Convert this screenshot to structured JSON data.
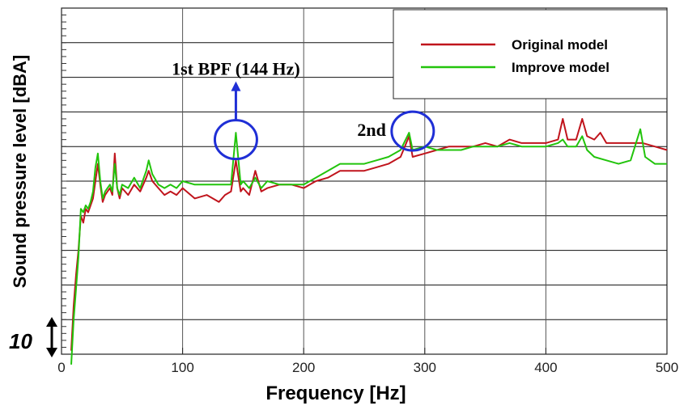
{
  "chart_data": {
    "type": "line",
    "title": "",
    "xlabel": "Frequency [Hz]",
    "ylabel": "Sound pressure level [dBA]",
    "xlim": [
      0,
      500
    ],
    "ylim": [
      0,
      100
    ],
    "x_ticks": [
      "0",
      "100",
      "200",
      "300",
      "400",
      "500"
    ],
    "scale_bar_label": "10",
    "grid": true,
    "legend_position": "top-right",
    "series": [
      {
        "name": "Original model",
        "color": "#c0141c",
        "points": [
          [
            8,
            1
          ],
          [
            10,
            14
          ],
          [
            12,
            23
          ],
          [
            14,
            30
          ],
          [
            16,
            40
          ],
          [
            18,
            38
          ],
          [
            20,
            42
          ],
          [
            22,
            41
          ],
          [
            24,
            43
          ],
          [
            26,
            45
          ],
          [
            28,
            50
          ],
          [
            30,
            55
          ],
          [
            32,
            49
          ],
          [
            34,
            44
          ],
          [
            36,
            46
          ],
          [
            38,
            47
          ],
          [
            40,
            48
          ],
          [
            42,
            46
          ],
          [
            44,
            58
          ],
          [
            46,
            48
          ],
          [
            48,
            45
          ],
          [
            50,
            48
          ],
          [
            55,
            46
          ],
          [
            60,
            49
          ],
          [
            65,
            47
          ],
          [
            70,
            51
          ],
          [
            72,
            53
          ],
          [
            75,
            50
          ],
          [
            80,
            48
          ],
          [
            85,
            46
          ],
          [
            90,
            47
          ],
          [
            95,
            46
          ],
          [
            100,
            48
          ],
          [
            110,
            45
          ],
          [
            120,
            46
          ],
          [
            130,
            44
          ],
          [
            135,
            46
          ],
          [
            140,
            47
          ],
          [
            144,
            56
          ],
          [
            148,
            47
          ],
          [
            150,
            48
          ],
          [
            155,
            46
          ],
          [
            160,
            53
          ],
          [
            165,
            47
          ],
          [
            170,
            48
          ],
          [
            180,
            49
          ],
          [
            190,
            49
          ],
          [
            200,
            48
          ],
          [
            210,
            50
          ],
          [
            220,
            51
          ],
          [
            230,
            53
          ],
          [
            240,
            53
          ],
          [
            250,
            53
          ],
          [
            260,
            54
          ],
          [
            270,
            55
          ],
          [
            280,
            57
          ],
          [
            287,
            63
          ],
          [
            290,
            57
          ],
          [
            300,
            58
          ],
          [
            310,
            59
          ],
          [
            320,
            60
          ],
          [
            330,
            60
          ],
          [
            340,
            60
          ],
          [
            350,
            61
          ],
          [
            360,
            60
          ],
          [
            370,
            62
          ],
          [
            380,
            61
          ],
          [
            390,
            61
          ],
          [
            400,
            61
          ],
          [
            410,
            62
          ],
          [
            414,
            68
          ],
          [
            418,
            62
          ],
          [
            425,
            62
          ],
          [
            430,
            68
          ],
          [
            434,
            63
          ],
          [
            440,
            62
          ],
          [
            445,
            64
          ],
          [
            450,
            61
          ],
          [
            460,
            61
          ],
          [
            470,
            61
          ],
          [
            480,
            61
          ],
          [
            490,
            60
          ],
          [
            500,
            59
          ]
        ]
      },
      {
        "name": "Improve model",
        "color": "#22c40c",
        "points": [
          [
            8,
            -3
          ],
          [
            10,
            10
          ],
          [
            12,
            19
          ],
          [
            14,
            28
          ],
          [
            16,
            42
          ],
          [
            18,
            41
          ],
          [
            20,
            43
          ],
          [
            22,
            42
          ],
          [
            24,
            44
          ],
          [
            26,
            47
          ],
          [
            28,
            54
          ],
          [
            30,
            58
          ],
          [
            32,
            50
          ],
          [
            34,
            45
          ],
          [
            36,
            47
          ],
          [
            38,
            48
          ],
          [
            40,
            49
          ],
          [
            42,
            47
          ],
          [
            44,
            55
          ],
          [
            46,
            48
          ],
          [
            48,
            46
          ],
          [
            50,
            49
          ],
          [
            55,
            48
          ],
          [
            60,
            51
          ],
          [
            65,
            48
          ],
          [
            70,
            53
          ],
          [
            72,
            56
          ],
          [
            75,
            52
          ],
          [
            80,
            49
          ],
          [
            85,
            48
          ],
          [
            90,
            49
          ],
          [
            95,
            48
          ],
          [
            100,
            50
          ],
          [
            110,
            49
          ],
          [
            120,
            49
          ],
          [
            130,
            49
          ],
          [
            140,
            49
          ],
          [
            144,
            64
          ],
          [
            148,
            49
          ],
          [
            150,
            50
          ],
          [
            155,
            48
          ],
          [
            160,
            51
          ],
          [
            165,
            48
          ],
          [
            170,
            50
          ],
          [
            180,
            49
          ],
          [
            190,
            49
          ],
          [
            200,
            49
          ],
          [
            210,
            51
          ],
          [
            220,
            53
          ],
          [
            230,
            55
          ],
          [
            240,
            55
          ],
          [
            250,
            55
          ],
          [
            260,
            56
          ],
          [
            270,
            57
          ],
          [
            280,
            59
          ],
          [
            287,
            64
          ],
          [
            290,
            59
          ],
          [
            300,
            60
          ],
          [
            310,
            59
          ],
          [
            320,
            59
          ],
          [
            330,
            59
          ],
          [
            340,
            60
          ],
          [
            350,
            60
          ],
          [
            360,
            60
          ],
          [
            370,
            61
          ],
          [
            380,
            60
          ],
          [
            390,
            60
          ],
          [
            400,
            60
          ],
          [
            410,
            61
          ],
          [
            414,
            62
          ],
          [
            418,
            60
          ],
          [
            425,
            60
          ],
          [
            430,
            63
          ],
          [
            434,
            59
          ],
          [
            440,
            57
          ],
          [
            450,
            56
          ],
          [
            460,
            55
          ],
          [
            470,
            56
          ],
          [
            478,
            65
          ],
          [
            482,
            57
          ],
          [
            490,
            55
          ],
          [
            500,
            55
          ]
        ]
      }
    ],
    "annotations": [
      {
        "id": "bpf1",
        "text": "1st BPF (144 Hz)",
        "x": 144,
        "y": 62
      },
      {
        "id": "bpf2",
        "text": "2nd",
        "x": 288,
        "y": 64
      }
    ]
  }
}
